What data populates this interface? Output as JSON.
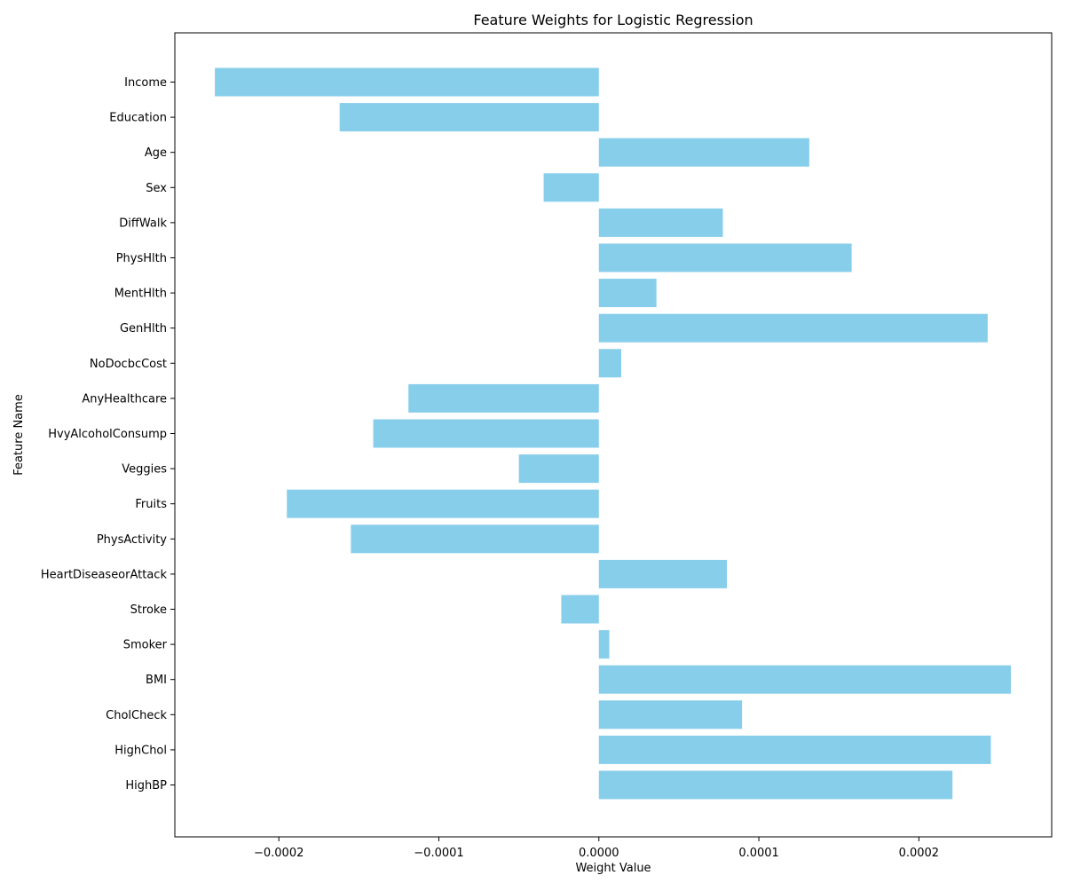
{
  "chart_data": {
    "type": "bar",
    "orientation": "horizontal",
    "title": "Feature Weights for Logistic Regression",
    "xlabel": "Weight Value",
    "ylabel": "Feature Name",
    "xlim": [
      -0.000265,
      0.000283
    ],
    "x_ticks": [
      -0.0002,
      -0.0001,
      0.0,
      0.0001,
      0.0002
    ],
    "x_tick_labels": [
      "−0.0002",
      "−0.0001",
      "0.0000",
      "0.0001",
      "0.0002"
    ],
    "grid": false,
    "bar_color": "#87ceeb",
    "categories": [
      "HighBP",
      "HighChol",
      "CholCheck",
      "BMI",
      "Smoker",
      "Stroke",
      "HeartDiseaseorAttack",
      "PhysActivity",
      "Fruits",
      "Veggies",
      "HvyAlcoholConsump",
      "AnyHealthcare",
      "NoDocbcCost",
      "GenHlth",
      "MentHlth",
      "PhysHlth",
      "DiffWalk",
      "Sex",
      "Age",
      "Education",
      "Income"
    ],
    "values": [
      0.000221,
      0.000245,
      8.95e-05,
      0.0002575,
      6.5e-06,
      -2.35e-05,
      8e-05,
      -0.000155,
      -0.000195,
      -5e-05,
      -0.000141,
      -0.000119,
      1.4e-05,
      0.000243,
      3.6e-05,
      0.000158,
      7.75e-05,
      -3.45e-05,
      0.0001315,
      -0.000162,
      -0.00024
    ]
  }
}
